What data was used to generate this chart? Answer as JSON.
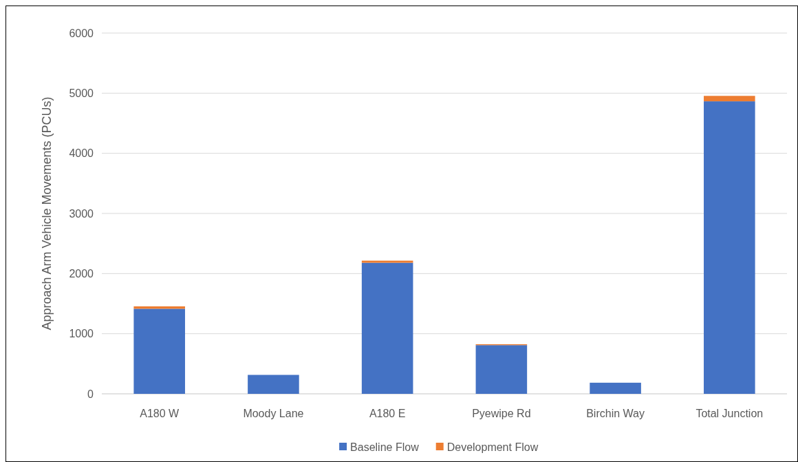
{
  "chart_data": {
    "type": "bar",
    "stacked": true,
    "ylabel": "Approach Arm Vehicle Movements (PCUs)",
    "categories": [
      "A180 W",
      "Moody Lane",
      "A180 E",
      "Pyewipe Rd",
      "Birchin Way",
      "Total Junction"
    ],
    "series": [
      {
        "name": "Baseline Flow",
        "color": "#4472c4",
        "values": [
          1415,
          315,
          2180,
          810,
          185,
          4865
        ]
      },
      {
        "name": "Development Flow",
        "color": "#ed7d31",
        "values": [
          40,
          0,
          35,
          15,
          0,
          90
        ]
      }
    ],
    "ylim": [
      0,
      6000
    ],
    "yticks": [
      0,
      1000,
      2000,
      3000,
      4000,
      5000,
      6000
    ],
    "grid": "y",
    "legend": "bottom"
  }
}
